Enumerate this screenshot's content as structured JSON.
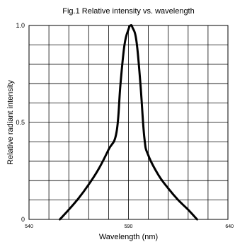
{
  "chart_data": {
    "type": "line",
    "title": "Fig.1 Relative intensity vs. wavelength",
    "xlabel": "Wavelength (nm)",
    "ylabel": "Relative radiant intensity",
    "xlim": [
      540,
      640
    ],
    "ylim": [
      0,
      1.0
    ],
    "x_ticks": [
      {
        "value": 540,
        "label": "540"
      },
      {
        "value": 590,
        "label": "590"
      },
      {
        "value": 640,
        "label": "640"
      }
    ],
    "y_ticks": [
      {
        "value": 0,
        "label": "0"
      },
      {
        "value": 0.5,
        "label": "0.5"
      },
      {
        "value": 1.0,
        "label": "1.0"
      }
    ],
    "grid": true,
    "grid_divisions": {
      "x": 10,
      "y": 10
    },
    "series": [
      {
        "color": "#000000",
        "x": [
          555.5,
          560,
          565,
          570,
          575,
          580,
          584,
          586,
          588,
          590,
          591,
          592,
          594,
          596,
          598,
          600,
          605,
          610,
          615,
          620,
          624.5
        ],
        "y": [
          0.0,
          0.05,
          0.11,
          0.18,
          0.26,
          0.36,
          0.45,
          0.7,
          0.9,
          0.98,
          1.0,
          0.99,
          0.92,
          0.7,
          0.42,
          0.33,
          0.23,
          0.16,
          0.1,
          0.05,
          0.0
        ]
      }
    ]
  }
}
